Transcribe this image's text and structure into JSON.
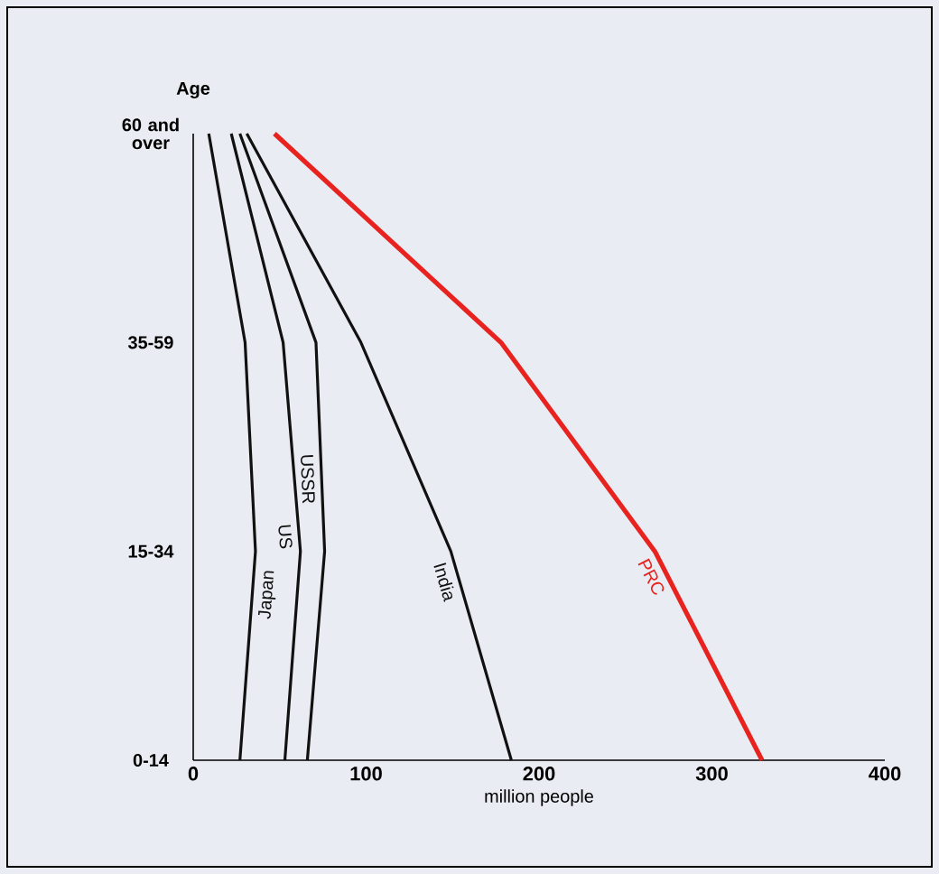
{
  "chart_data": {
    "type": "line",
    "xlabel": "million people",
    "ylabel": "Age",
    "categories": [
      "60 and over",
      "35-59",
      "15-34",
      "0-14"
    ],
    "orientation": "horizontal",
    "xlim": [
      0,
      400
    ],
    "xticks": [
      0,
      100,
      200,
      300,
      400
    ],
    "series": [
      {
        "name": "Japan",
        "color": "#111111",
        "values": [
          9,
          30,
          36,
          27
        ]
      },
      {
        "name": "US",
        "color": "#111111",
        "values": [
          22,
          52,
          62,
          53
        ]
      },
      {
        "name": "USSR",
        "color": "#111111",
        "values": [
          27,
          71,
          76,
          66
        ]
      },
      {
        "name": "India",
        "color": "#111111",
        "values": [
          31,
          97,
          149,
          184
        ]
      },
      {
        "name": "PRC",
        "color": "#e8231f",
        "values": [
          47,
          178,
          267,
          329
        ]
      }
    ],
    "grid": false,
    "legend": false,
    "marker": "none",
    "line_style": "solid"
  }
}
